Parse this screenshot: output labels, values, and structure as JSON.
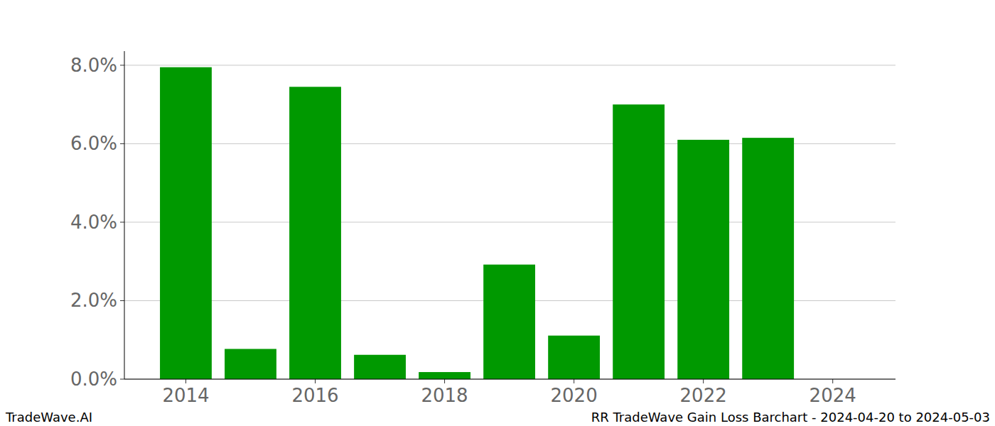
{
  "chart_data": {
    "type": "bar",
    "title": "RR TradeWave Gain Loss Barchart - 2024-04-20 to 2024-05-03",
    "source": "TradeWave.AI",
    "x": [
      2014,
      2015,
      2016,
      2017,
      2018,
      2019,
      2020,
      2021,
      2022,
      2023
    ],
    "values": [
      7.95,
      0.77,
      7.45,
      0.62,
      0.18,
      2.92,
      1.11,
      7.0,
      6.1,
      6.15
    ],
    "color": "#009900",
    "xlim": [
      2013.05,
      2024.97
    ],
    "xticks": [
      2014,
      2016,
      2018,
      2020,
      2022,
      2024
    ],
    "ylim": [
      0,
      8.36
    ],
    "yticks": [
      {
        "value": 0,
        "label": "0.0%"
      },
      {
        "value": 2,
        "label": "2.0%"
      },
      {
        "value": 4,
        "label": "4.0%"
      },
      {
        "value": 6,
        "label": "6.0%"
      },
      {
        "value": 8,
        "label": "8.0%"
      }
    ],
    "grid": true
  }
}
